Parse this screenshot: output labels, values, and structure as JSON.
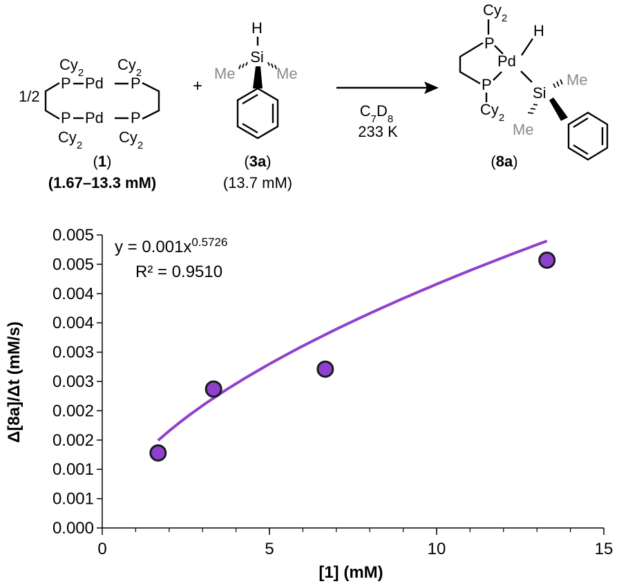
{
  "scheme": {
    "dimer": {
      "fraction": "1/2",
      "atoms": {
        "p": "P",
        "pd": "Pd"
      },
      "cy": "Cy",
      "cy_sub": "2",
      "number": "1",
      "concentration": "(1.67–13.3 mM)"
    },
    "silane": {
      "h": "H",
      "si": "Si",
      "me": "Me",
      "number": "3a",
      "concentration": "(13.7 mM)"
    },
    "plus": "+",
    "conditions": {
      "solvent_c": "C",
      "solvent_c_sub": "7",
      "solvent_d": "D",
      "solvent_d_sub": "8",
      "temperature": "233 K"
    },
    "product": {
      "h": "H",
      "pd": "Pd",
      "p": "P",
      "si": "Si",
      "me": "Me",
      "cy": "Cy",
      "cy_sub": "2",
      "number": "8a"
    },
    "colors": {
      "methyl_gray": "#8a8a8a",
      "bond": "#000000"
    }
  },
  "chart_data": {
    "type": "scatter",
    "xlabel": "[1] (mM)",
    "ylabel": "Δ[8a]/Δt (mM/s)",
    "xlim": [
      0,
      15
    ],
    "ylim": [
      0,
      0.005
    ],
    "x_ticks": [
      0,
      5,
      10,
      15
    ],
    "x_tick_labels": [
      "0",
      "5",
      "10",
      "15"
    ],
    "y_ticks": [
      0,
      0.0005,
      0.001,
      0.0015,
      0.002,
      0.0025,
      0.003,
      0.0035,
      0.004,
      0.0045,
      0.005
    ],
    "y_tick_labels": [
      "0.000",
      "0.001",
      "0.001",
      "0.002",
      "0.002",
      "0.003",
      "0.003",
      "0.004",
      "0.004",
      "0.005",
      "0.005"
    ],
    "grid": false,
    "x": [
      1.67,
      3.33,
      6.67,
      13.3
    ],
    "y": [
      0.00128,
      0.00237,
      0.00271,
      0.00457
    ],
    "fit": {
      "type": "power",
      "coefficient": 0.001,
      "exponent": 0.5726,
      "equation_prefix": "y = 0.001x",
      "equation_exponent": "0.5726",
      "r_squared": "R² = 0.9510"
    },
    "colors": {
      "marker": "#8f40cf",
      "marker_edge": "#1a1a1a",
      "fit_line": "#8f40cf",
      "axis": "#000000"
    }
  }
}
